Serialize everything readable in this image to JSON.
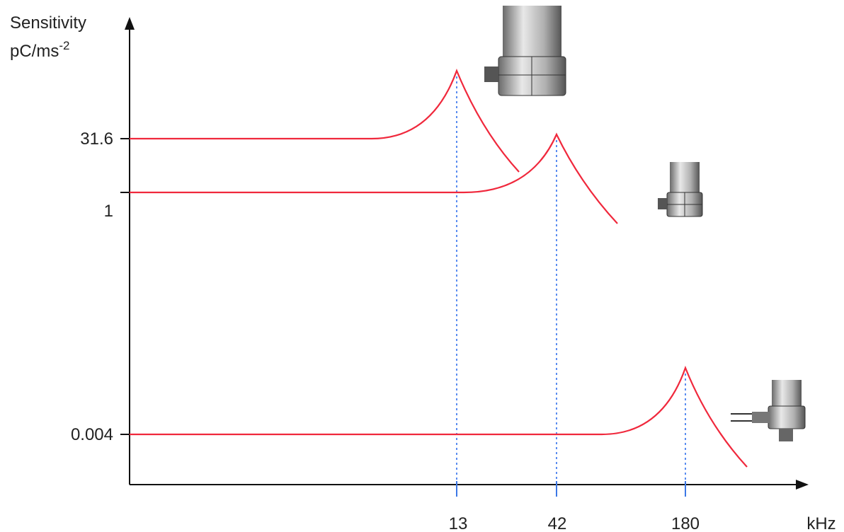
{
  "y_axis": {
    "title": "Sensitivity",
    "unit": "pC/ms",
    "unit_exponent": "-2",
    "ticks": [
      "31.6",
      "1",
      "0.004"
    ]
  },
  "x_axis": {
    "unit": "kHz",
    "ticks": [
      "13",
      "42",
      "180"
    ]
  }
}
